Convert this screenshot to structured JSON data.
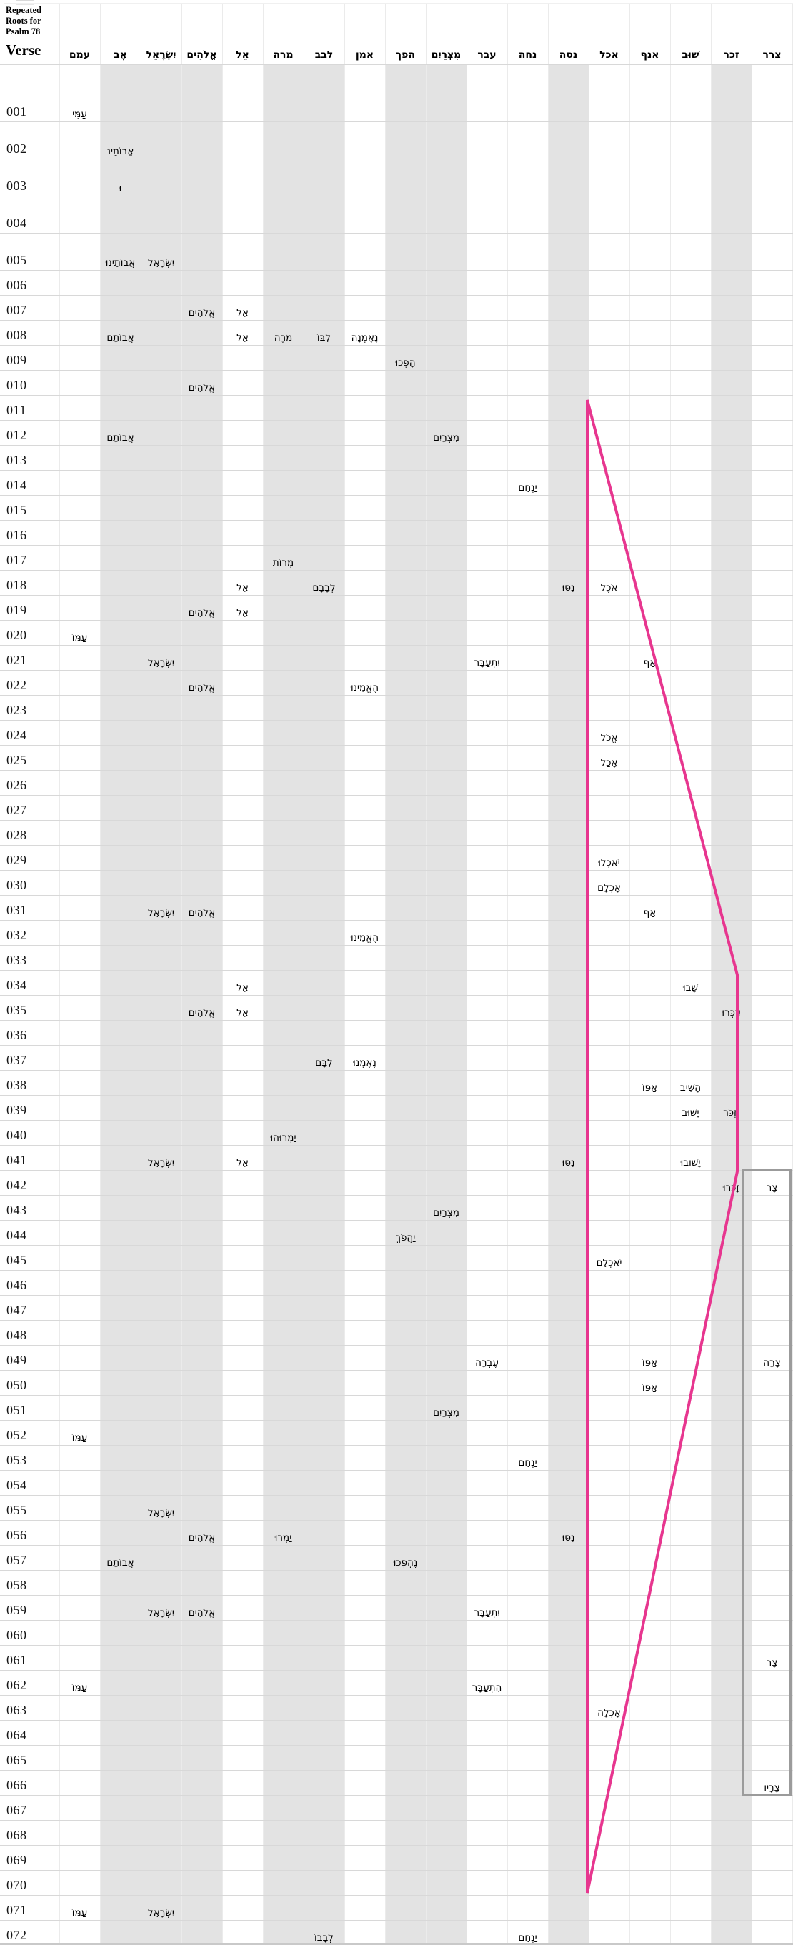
{
  "title": "Repeated\nRoots for\nPsalm 78",
  "verse_column_header": "Verse",
  "columns": [
    {
      "key": "עמם",
      "label": "עמם",
      "shaded": false
    },
    {
      "key": "אב",
      "label": "אָב",
      "shaded": true
    },
    {
      "key": "ישראל",
      "label": "יִשְׂרָאֵל",
      "shaded": true
    },
    {
      "key": "אלהים",
      "label": "אֱלֹהִים",
      "shaded": true
    },
    {
      "key": "אל",
      "label": "אֵל",
      "shaded": false
    },
    {
      "key": "מרה",
      "label": "מרה",
      "shaded": true
    },
    {
      "key": "לבב",
      "label": "לבב",
      "shaded": true
    },
    {
      "key": "אמן",
      "label": "אמן",
      "shaded": false
    },
    {
      "key": "הפך",
      "label": "הפך",
      "shaded": true
    },
    {
      "key": "מצרים",
      "label": "מִצְרַיִם",
      "shaded": true
    },
    {
      "key": "עבר",
      "label": "עבר",
      "shaded": false
    },
    {
      "key": "נחה",
      "label": "נחה",
      "shaded": false
    },
    {
      "key": "נסה",
      "label": "נסה",
      "shaded": true
    },
    {
      "key": "אכל",
      "label": "אכל",
      "shaded": false
    },
    {
      "key": "אנף",
      "label": "אנף",
      "shaded": false
    },
    {
      "key": "שוב",
      "label": "שׁוּב",
      "shaded": false
    },
    {
      "key": "זכר",
      "label": "זכר",
      "shaded": true
    },
    {
      "key": "צרר",
      "label": "צרר",
      "shaded": false
    }
  ],
  "rows": [
    {
      "verse": "001",
      "cells": {
        "עמם": "עַמִּי"
      }
    },
    {
      "verse": "002",
      "cells": {
        "אב": "אֲבוֹתֵינ"
      }
    },
    {
      "verse": "003",
      "cells": {
        "אב": "וּ"
      }
    },
    {
      "verse": "004",
      "cells": {}
    },
    {
      "verse": "005",
      "cells": {
        "אב": "אֲבוֹתֵינוּ",
        "ישראל": "יִשְׂרָאֵל"
      }
    },
    {
      "verse": "006",
      "cells": {}
    },
    {
      "verse": "007",
      "cells": {
        "אלהים": "אֱלֹהִים",
        "אל": "אֵל"
      }
    },
    {
      "verse": "008",
      "cells": {
        "אב": "אֲבוֹתָם",
        "אל": "אֵל",
        "מרה": "מֹרֶה",
        "לבב": "לִבּוֹ",
        "אמן": "נֶאֶמְנָה"
      }
    },
    {
      "verse": "009",
      "cells": {
        "הפך": "הָפְכוּ"
      }
    },
    {
      "verse": "010",
      "cells": {
        "אלהים": "אֱלֹהִים"
      }
    },
    {
      "verse": "011",
      "cells": {}
    },
    {
      "verse": "012",
      "cells": {
        "אב": "אֲבוֹתָם",
        "מצרים": "מִצְרָיִם"
      }
    },
    {
      "verse": "013",
      "cells": {}
    },
    {
      "verse": "014",
      "cells": {
        "נחה": "יַנְחֵם"
      }
    },
    {
      "verse": "015",
      "cells": {}
    },
    {
      "verse": "016",
      "cells": {}
    },
    {
      "verse": "017",
      "cells": {
        "מרה": "מְרוֹת"
      }
    },
    {
      "verse": "018",
      "cells": {
        "אל": "אֵל",
        "לבב": "לְבָבָם",
        "נסה": "נִסּוּ",
        "אכל": "אֹכֶל"
      }
    },
    {
      "verse": "019",
      "cells": {
        "אלהים": "אֱלֹהִים",
        "אל": "אֵל"
      }
    },
    {
      "verse": "020",
      "cells": {
        "עמם": "עַמּוֹ"
      }
    },
    {
      "verse": "021",
      "cells": {
        "ישראל": "יִשְׂרָאֵל",
        "עבר": "יִתְעַבָּר",
        "אנף": "אַף"
      }
    },
    {
      "verse": "022",
      "cells": {
        "אלהים": "אֱלֹהִים",
        "אמן": "הֶאֱמִינוּ"
      }
    },
    {
      "verse": "023",
      "cells": {}
    },
    {
      "verse": "024",
      "cells": {
        "אכל": "אֱכֹל"
      }
    },
    {
      "verse": "025",
      "cells": {
        "אכל": "אָכַל"
      }
    },
    {
      "verse": "026",
      "cells": {}
    },
    {
      "verse": "027",
      "cells": {}
    },
    {
      "verse": "028",
      "cells": {}
    },
    {
      "verse": "029",
      "cells": {
        "אכל": "יֹאכְלוּ"
      }
    },
    {
      "verse": "030",
      "cells": {
        "אכל": "אָכְלָם"
      }
    },
    {
      "verse": "031",
      "cells": {
        "ישראל": "יִשְׂרָאֵל",
        "אלהים": "אֱלֹהִים",
        "אנף": "אַף"
      }
    },
    {
      "verse": "032",
      "cells": {
        "אמן": "הֶאֱמִינוּ"
      }
    },
    {
      "verse": "033",
      "cells": {}
    },
    {
      "verse": "034",
      "cells": {
        "אל": "אֵל",
        "שוב": "שָׁבוּ"
      }
    },
    {
      "verse": "035",
      "cells": {
        "אלהים": "אֱלֹהִים",
        "אל": "אֵל",
        "זכר": "יִזְכְּרוּ"
      }
    },
    {
      "verse": "036",
      "cells": {}
    },
    {
      "verse": "037",
      "cells": {
        "לבב": "לִבָּם",
        "אמן": "נֶאֶמְנוּ"
      }
    },
    {
      "verse": "038",
      "cells": {
        "אנף": "אַפּוֹ",
        "שוב": "הָשִׁיב"
      }
    },
    {
      "verse": "039",
      "cells": {
        "שוב": "יָשׁוּב",
        "זכר": "יִזְכֹּר"
      }
    },
    {
      "verse": "040",
      "cells": {
        "מרה": "יַמְרוּהוּ"
      }
    },
    {
      "verse": "041",
      "cells": {
        "ישראל": "יִשְׂרָאֵל",
        "אל": "אֵל",
        "נסה": "נִסּוּ",
        "שוב": "יָשׁוּבוּ"
      }
    },
    {
      "verse": "042",
      "cells": {
        "זכר": "זָכְרוּ",
        "צרר": "צָר"
      }
    },
    {
      "verse": "043",
      "cells": {
        "מצרים": "מִצְרַיִם"
      }
    },
    {
      "verse": "044",
      "cells": {
        "הפך": "יַהֲפֹךְ"
      }
    },
    {
      "verse": "045",
      "cells": {
        "אכל": "יֹאכְלֵם"
      }
    },
    {
      "verse": "046",
      "cells": {}
    },
    {
      "verse": "047",
      "cells": {}
    },
    {
      "verse": "048",
      "cells": {}
    },
    {
      "verse": "049",
      "cells": {
        "עבר": "עֶבְרָה",
        "אנף": "אַפּוֹ",
        "צרר": "צָרָה"
      }
    },
    {
      "verse": "050",
      "cells": {
        "אנף": "אַפּוֹ"
      }
    },
    {
      "verse": "051",
      "cells": {
        "מצרים": "מִצְרָיִם"
      }
    },
    {
      "verse": "052",
      "cells": {
        "עמם": "עַמּוֹ"
      }
    },
    {
      "verse": "053",
      "cells": {
        "נחה": "יַנְחֵם"
      }
    },
    {
      "verse": "054",
      "cells": {}
    },
    {
      "verse": "055",
      "cells": {
        "ישראל": "יִשְׂרָאֵל"
      }
    },
    {
      "verse": "056",
      "cells": {
        "אלהים": "אֱלֹהִים",
        "מרה": "יַמְרוּ",
        "נסה": "נִסּוּ"
      }
    },
    {
      "verse": "057",
      "cells": {
        "אב": "אֲבוֹתָם",
        "הפך": "נֶהְפְּכוּ"
      }
    },
    {
      "verse": "058",
      "cells": {}
    },
    {
      "verse": "059",
      "cells": {
        "ישראל": "יִשְׂרָאֵל",
        "אלהים": "אֱלֹהִים",
        "עבר": "יִתְעַבָּר"
      }
    },
    {
      "verse": "060",
      "cells": {}
    },
    {
      "verse": "061",
      "cells": {
        "צרר": "צָר"
      }
    },
    {
      "verse": "062",
      "cells": {
        "עמם": "עַמּוֹ",
        "עבר": "הִתְעַבָּר"
      }
    },
    {
      "verse": "063",
      "cells": {
        "אכל": "אָכְלָה"
      }
    },
    {
      "verse": "064",
      "cells": {}
    },
    {
      "verse": "065",
      "cells": {}
    },
    {
      "verse": "066",
      "cells": {
        "צרר": "צָרָיו"
      }
    },
    {
      "verse": "067",
      "cells": {}
    },
    {
      "verse": "068",
      "cells": {}
    },
    {
      "verse": "069",
      "cells": {}
    },
    {
      "verse": "070",
      "cells": {}
    },
    {
      "verse": "071",
      "cells": {
        "עמם": "עַמּוֹ",
        "ישראל": "יִשְׂרָאֵל"
      }
    },
    {
      "verse": "072",
      "cells": {
        "לבב": "לְבָבוֹ",
        "נחה": "יַנְחֵם"
      }
    }
  ],
  "overlays": {
    "triangle_color": "#e7368f",
    "box_color": "#9b9b9b",
    "shaded_column_color": "#e3e3e3"
  }
}
